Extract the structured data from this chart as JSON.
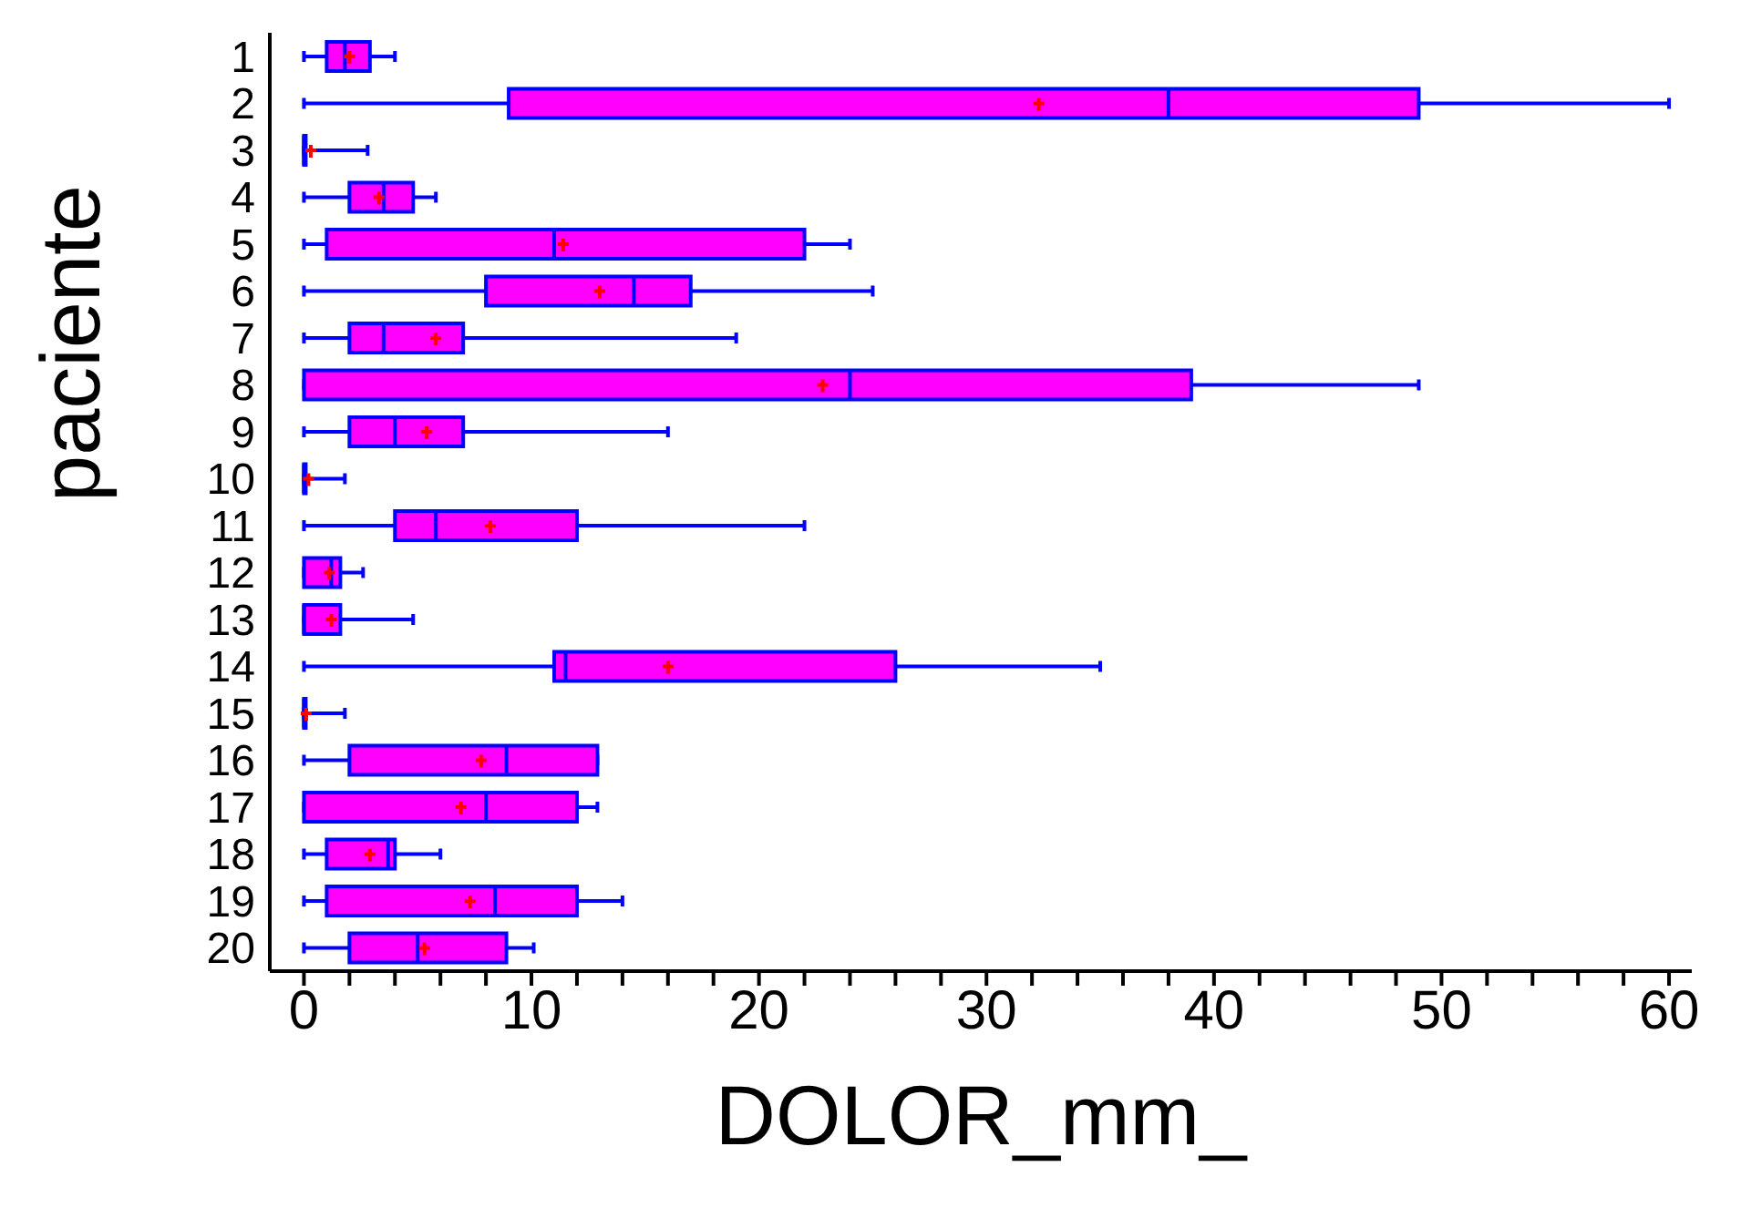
{
  "chart_data": {
    "type": "box",
    "xlabel": "DOLOR_mm_",
    "ylabel": "paciente",
    "orientation": "horizontal",
    "categories": [
      "1",
      "2",
      "3",
      "4",
      "5",
      "6",
      "7",
      "8",
      "9",
      "10",
      "11",
      "12",
      "13",
      "14",
      "15",
      "16",
      "17",
      "18",
      "19",
      "20"
    ],
    "xlim": [
      -1.5,
      61
    ],
    "xticks": [
      0,
      {
        "value": 2,
        "label": null
      },
      {
        "value": 4,
        "label": null
      },
      {
        "value": 6,
        "label": null
      },
      {
        "value": 8,
        "label": null
      },
      10,
      {
        "value": 12,
        "label": null
      },
      {
        "value": 14,
        "label": null
      },
      {
        "value": 16,
        "label": null
      },
      {
        "value": 18,
        "label": null
      },
      20,
      {
        "value": 22,
        "label": null
      },
      {
        "value": 24,
        "label": null
      },
      {
        "value": 26,
        "label": null
      },
      {
        "value": 28,
        "label": null
      },
      30,
      {
        "value": 32,
        "label": null
      },
      {
        "value": 34,
        "label": null
      },
      {
        "value": 36,
        "label": null
      },
      {
        "value": 38,
        "label": null
      },
      40,
      {
        "value": 42,
        "label": null
      },
      {
        "value": 44,
        "label": null
      },
      {
        "value": 46,
        "label": null
      },
      {
        "value": 48,
        "label": null
      },
      50,
      {
        "value": 52,
        "label": null
      },
      {
        "value": 54,
        "label": null
      },
      {
        "value": 56,
        "label": null
      },
      {
        "value": 58,
        "label": null
      },
      60
    ],
    "color": "#ff00ff",
    "grid": false,
    "legend": false,
    "boxes": [
      {
        "low": 0,
        "q1": 1,
        "median": 1.8,
        "q3": 2.9,
        "high": 4,
        "mean": 2
      },
      {
        "low": 0,
        "q1": 9,
        "median": 38,
        "q3": 49,
        "high": 60,
        "mean": 32.3
      },
      {
        "low": 0,
        "q1": 0,
        "median": 0,
        "q3": 0,
        "high": 2.8,
        "mean": 0.3
      },
      {
        "low": 0,
        "q1": 2,
        "median": 3.5,
        "q3": 4.8,
        "high": 5.8,
        "mean": 3.3
      },
      {
        "low": 0,
        "q1": 1,
        "median": 11,
        "q3": 22,
        "high": 24,
        "mean": 11.4
      },
      {
        "low": 0,
        "q1": 8,
        "median": 14.5,
        "q3": 17,
        "high": 25,
        "mean": 13
      },
      {
        "low": 0,
        "q1": 2,
        "median": 3.5,
        "q3": 7,
        "high": 19,
        "mean": 5.8
      },
      {
        "low": 0,
        "q1": 0,
        "median": 24,
        "q3": 39,
        "high": 49,
        "mean": 22.8
      },
      {
        "low": 0,
        "q1": 2,
        "median": 4,
        "q3": 7,
        "high": 16,
        "mean": 5.4
      },
      {
        "low": 0,
        "q1": 0,
        "median": 0,
        "q3": 0,
        "high": 1.8,
        "mean": 0.2
      },
      {
        "low": 0,
        "q1": 4,
        "median": 5.8,
        "q3": 12,
        "high": 22,
        "mean": 8.2
      },
      {
        "low": 0,
        "q1": 0,
        "median": 1.2,
        "q3": 1.6,
        "high": 2.6,
        "mean": 1.1
      },
      {
        "low": 0,
        "q1": 0,
        "median": 0,
        "q3": 1.6,
        "high": 4.8,
        "mean": 1.2
      },
      {
        "low": 0,
        "q1": 11,
        "median": 11.5,
        "q3": 26,
        "high": 35,
        "mean": 16
      },
      {
        "low": 0,
        "q1": 0,
        "median": 0,
        "q3": 0,
        "high": 1.8,
        "mean": 0.1
      },
      {
        "low": 0,
        "q1": 2,
        "median": 8.9,
        "q3": 12.9,
        "high": 12.9,
        "mean": 7.8
      },
      {
        "low": 0,
        "q1": 0,
        "median": 8,
        "q3": 12,
        "high": 12.9,
        "mean": 6.9
      },
      {
        "low": 0,
        "q1": 1,
        "median": 3.7,
        "q3": 4,
        "high": 6,
        "mean": 2.9
      },
      {
        "low": 0,
        "q1": 1,
        "median": 8.4,
        "q3": 12,
        "high": 14,
        "mean": 7.3
      },
      {
        "low": 0,
        "q1": 2,
        "median": 5,
        "q3": 8.9,
        "high": 10.1,
        "mean": 5.3
      }
    ]
  }
}
